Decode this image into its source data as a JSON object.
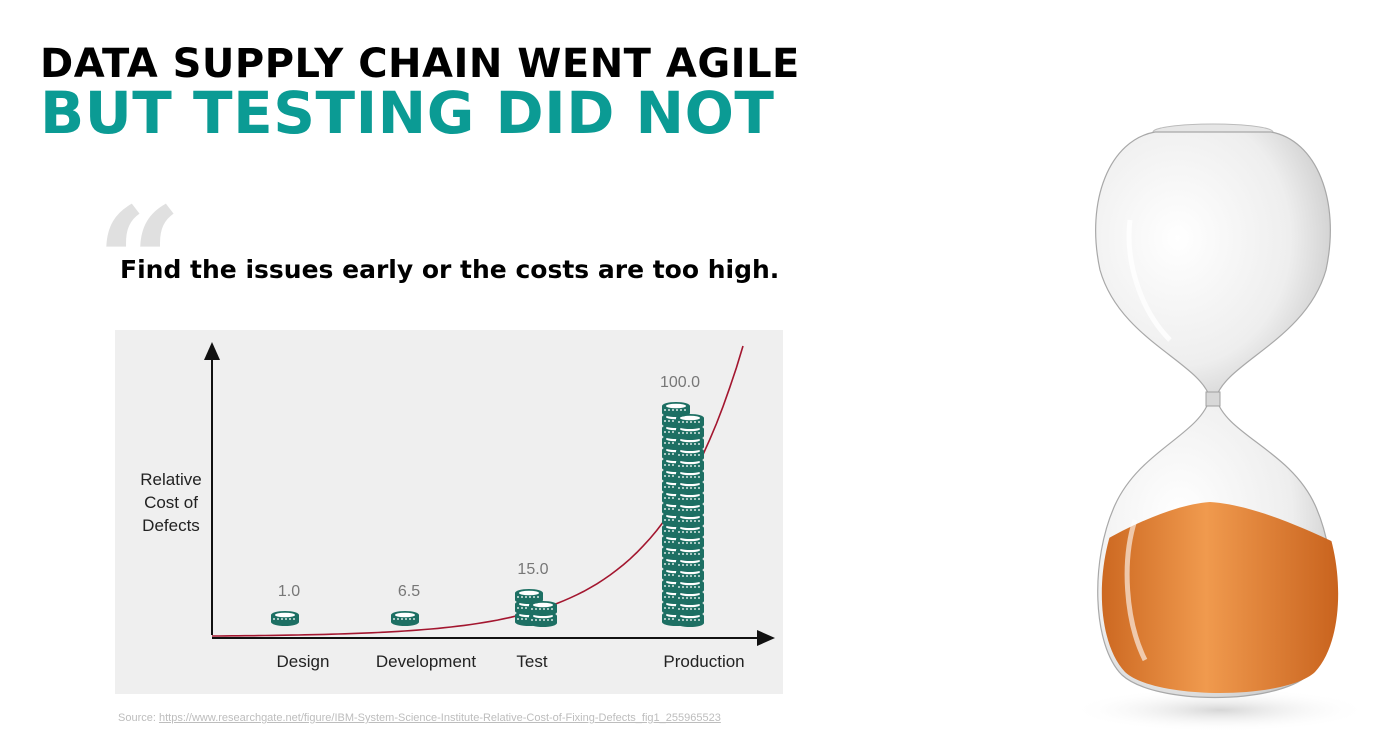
{
  "heading": {
    "line1": "DATA SUPPLY CHAIN WENT AGILE",
    "line2": "BUT TESTING DID NOT"
  },
  "quote": {
    "mark": "“",
    "text": "Find the issues early or the costs are too high."
  },
  "source": {
    "prefix": "Source: ",
    "url": "https://www.researchgate.net/figure/IBM-System-Science-Institute-Relative-Cost-of-Fixing-Defects_fig1_255965523"
  },
  "colors": {
    "accent_teal": "#0b9b94",
    "coin_teal": "#1d6f63",
    "curve_red": "#a3162f",
    "chart_bg": "#efefef",
    "sand_orange": "#e07a2b"
  },
  "icons": {
    "quote": "quote-mark-icon",
    "coins": "coin-stack-icon",
    "hourglass": "hourglass-icon"
  },
  "chart_data": {
    "type": "bar",
    "categories": [
      "Design",
      "Development",
      "Test",
      "Production"
    ],
    "values": [
      1.0,
      6.5,
      15.0,
      100.0
    ],
    "value_labels": [
      "1.0",
      "6.5",
      "15.0",
      "100.0"
    ],
    "ylabel": [
      "Relative",
      "Cost of",
      "Defects"
    ],
    "xlabel": "",
    "title": "",
    "ylim": [
      0,
      120
    ],
    "trend_curve": "exponential",
    "grid": false
  }
}
